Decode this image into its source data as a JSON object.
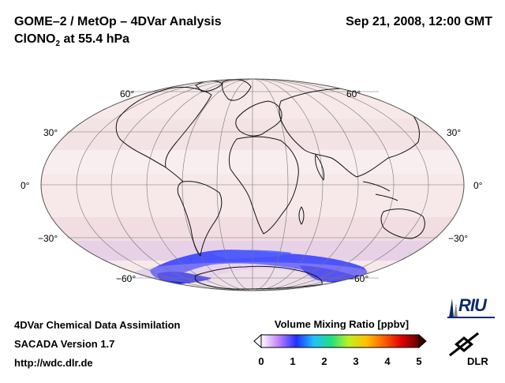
{
  "header": {
    "title_line1": "GOME–2 / MetOp – 4DVar Analysis",
    "title_species": "ClONO",
    "title_subscript": "2",
    "title_level": " at 55.4 hPa",
    "datetime": "Sep 21, 2008, 12:00 GMT"
  },
  "map": {
    "projection": "Mollweide",
    "lat_labels": {
      "n60": "60°",
      "n30": "30°",
      "eq": "0°",
      "s30": "−30°",
      "s60": "−60°"
    }
  },
  "colorbar": {
    "title": "Volume Mixing Ratio [ppbv]",
    "ticks": [
      "0",
      "1",
      "2",
      "3",
      "4",
      "5"
    ],
    "min": 0,
    "max": 5,
    "colors": [
      "#ffffff",
      "#c080ff",
      "#2030ff",
      "#20c0ff",
      "#20e080",
      "#c0f020",
      "#ffc000",
      "#ff6000",
      "#e00000",
      "#600000"
    ]
  },
  "footer": {
    "line1": "4DVar Chemical Data Assimilation",
    "line2": "SACADA Version 1.7",
    "line3": "http://wdc.dlr.de"
  },
  "logos": {
    "riu": "RIU",
    "dlr": "DLR"
  }
}
